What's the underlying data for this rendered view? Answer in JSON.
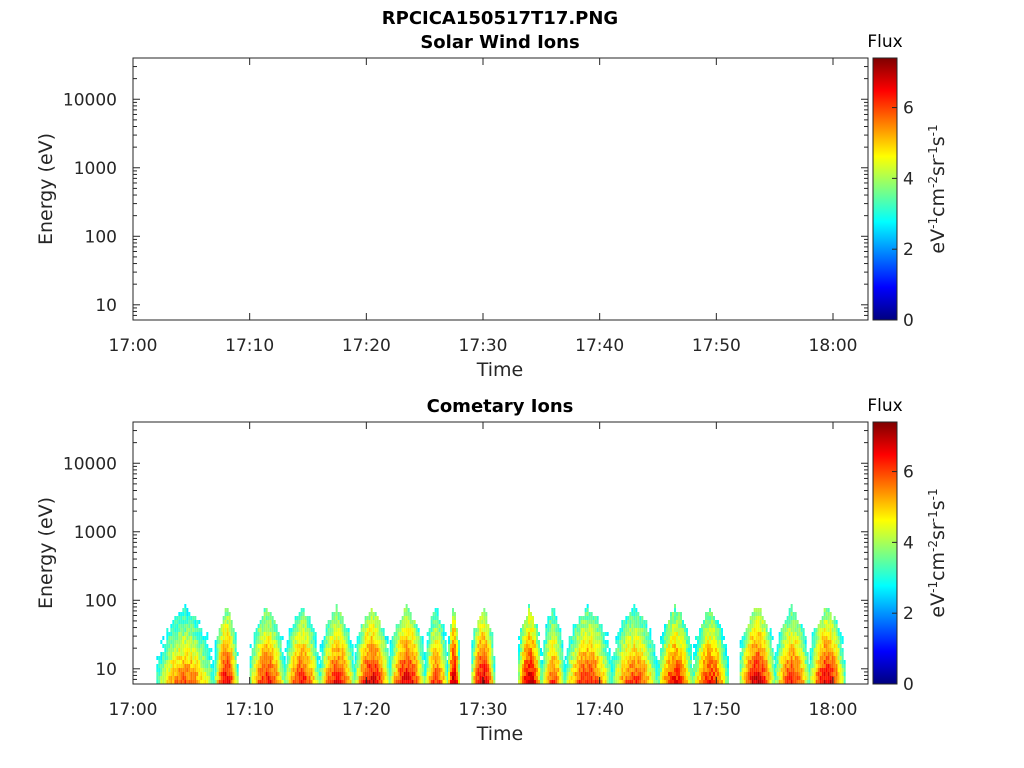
{
  "figure_title": "RPCICA150517T17.PNG",
  "colormap": [
    "#00007f",
    "#0000ff",
    "#007fff",
    "#00ffff",
    "#7fff7f",
    "#ffff00",
    "#ff7f00",
    "#ff0000",
    "#7f0000"
  ],
  "chart_data": [
    {
      "type": "heatmap",
      "title": "Solar Wind Ions",
      "xlabel": "Time",
      "ylabel": "Energy (eV)",
      "x_ticks": [
        "17:00",
        "17:10",
        "17:20",
        "17:30",
        "17:40",
        "17:50",
        "18:00"
      ],
      "x_range": [
        "17:00",
        "18:03"
      ],
      "y_scale": "log",
      "y_ticks": [
        "10",
        "100",
        "1000",
        "10000"
      ],
      "y_range": [
        6,
        40000
      ],
      "colorbar": {
        "title": "Flux",
        "label": "eV-1cm-2sr-1s-1",
        "ticks": [
          "0",
          "2",
          "4",
          "6"
        ],
        "range": [
          0,
          7.4
        ]
      },
      "data": []
    },
    {
      "type": "heatmap",
      "title": "Cometary Ions",
      "xlabel": "Time",
      "ylabel": "Energy (eV)",
      "x_ticks": [
        "17:00",
        "17:10",
        "17:20",
        "17:30",
        "17:40",
        "17:50",
        "18:00"
      ],
      "x_range": [
        "17:00",
        "18:03"
      ],
      "y_scale": "log",
      "y_ticks": [
        "10",
        "100",
        "1000",
        "10000"
      ],
      "y_range": [
        6,
        40000
      ],
      "colorbar": {
        "title": "Flux",
        "label": "eV-1cm-2sr-1s-1",
        "ticks": [
          "0",
          "2",
          "4",
          "6"
        ],
        "range": [
          0,
          7.4
        ]
      },
      "data_time_range": [
        "17:02",
        "18:01"
      ],
      "data_energy_range_eV": [
        6,
        80
      ],
      "flux_range": [
        2.5,
        7.2
      ],
      "bursts": [
        {
          "start": "17:02",
          "end": "17:07",
          "peak_flux": 6.0
        },
        {
          "start": "17:07",
          "end": "17:09",
          "peak_flux": 6.8
        },
        {
          "start": "17:10",
          "end": "17:13",
          "peak_flux": 6.6
        },
        {
          "start": "17:13",
          "end": "17:16",
          "peak_flux": 6.5
        },
        {
          "start": "17:16",
          "end": "17:19",
          "peak_flux": 6.6
        },
        {
          "start": "17:19",
          "end": "17:22",
          "peak_flux": 6.9
        },
        {
          "start": "17:22",
          "end": "17:25",
          "peak_flux": 6.9
        },
        {
          "start": "17:25",
          "end": "17:27",
          "peak_flux": 6.3
        },
        {
          "start": "17:27",
          "end": "17:28",
          "peak_flux": 7.1
        },
        {
          "start": "17:29",
          "end": "17:31",
          "peak_flux": 7.0
        },
        {
          "start": "17:33",
          "end": "17:35",
          "peak_flux": 7.0
        },
        {
          "start": "17:35",
          "end": "17:37",
          "peak_flux": 6.2
        },
        {
          "start": "17:37",
          "end": "17:41",
          "peak_flux": 6.5
        },
        {
          "start": "17:41",
          "end": "17:45",
          "peak_flux": 6.3
        },
        {
          "start": "17:45",
          "end": "17:48",
          "peak_flux": 6.6
        },
        {
          "start": "17:48",
          "end": "17:51",
          "peak_flux": 6.5
        },
        {
          "start": "17:52",
          "end": "17:55",
          "peak_flux": 7.0
        },
        {
          "start": "17:55",
          "end": "17:58",
          "peak_flux": 6.5
        },
        {
          "start": "17:58",
          "end": "18:01",
          "peak_flux": 6.9
        }
      ]
    }
  ]
}
